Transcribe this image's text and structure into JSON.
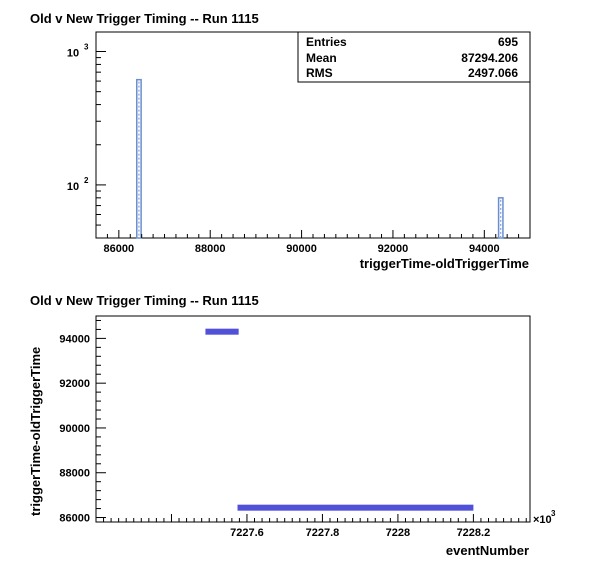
{
  "chart_data": [
    {
      "type": "bar",
      "title": "Old v New Trigger Timing -- Run 1115",
      "xlabel": "triggerTime-oldTriggerTime",
      "ylabel": "",
      "y_scale": "log",
      "xlim": [
        85500,
        95000
      ],
      "ylim": [
        40,
        1400
      ],
      "x_ticks": [
        {
          "value": 86000,
          "label": "86000"
        },
        {
          "value": 88000,
          "label": "88000"
        },
        {
          "value": 90000,
          "label": "90000"
        },
        {
          "value": 92000,
          "label": "92000"
        },
        {
          "value": 94000,
          "label": "94000"
        }
      ],
      "y_ticks": [
        {
          "value": 100,
          "base": "10",
          "exp": "2"
        },
        {
          "value": 1000,
          "base": "10",
          "exp": "3"
        }
      ],
      "bin_width": 95,
      "bins": [
        {
          "center": 86440,
          "count": 615
        },
        {
          "center": 94360,
          "count": 80
        }
      ],
      "stats": [
        {
          "name": "Entries",
          "value": "695"
        },
        {
          "name": "Mean",
          "value": "87294.206"
        },
        {
          "name": "RMS",
          "value": "2497.066"
        }
      ],
      "bar_color": "#6a8fd0",
      "grid": false
    },
    {
      "type": "scatter",
      "title": "Old v New Trigger Timing -- Run 1115",
      "xlabel": "eventNumber",
      "ylabel": "triggerTime-oldTriggerTime",
      "x_multiplier_label": "×10",
      "x_multiplier_exp": "3",
      "xlim": [
        7227.2,
        7228.35
      ],
      "ylim": [
        85800,
        95000
      ],
      "x_ticks": [
        {
          "value": 7227.6,
          "label": "7227.6"
        },
        {
          "value": 7227.8,
          "label": "7227.8"
        },
        {
          "value": 7228,
          "label": "7228"
        },
        {
          "value": 7228.2,
          "label": "7228.2"
        }
      ],
      "y_ticks": [
        {
          "value": 86000,
          "label": "86000"
        },
        {
          "value": 88000,
          "label": "88000"
        },
        {
          "value": 90000,
          "label": "90000"
        },
        {
          "value": 92000,
          "label": "92000"
        },
        {
          "value": 94000,
          "label": "94000"
        }
      ],
      "bands": [
        {
          "x_start": 7227.49,
          "x_end": 7227.578,
          "y": 94300
        },
        {
          "x_start": 7227.575,
          "x_end": 7228.2,
          "y": 86440
        }
      ],
      "marker_color": "#5050d8",
      "grid": false
    }
  ]
}
